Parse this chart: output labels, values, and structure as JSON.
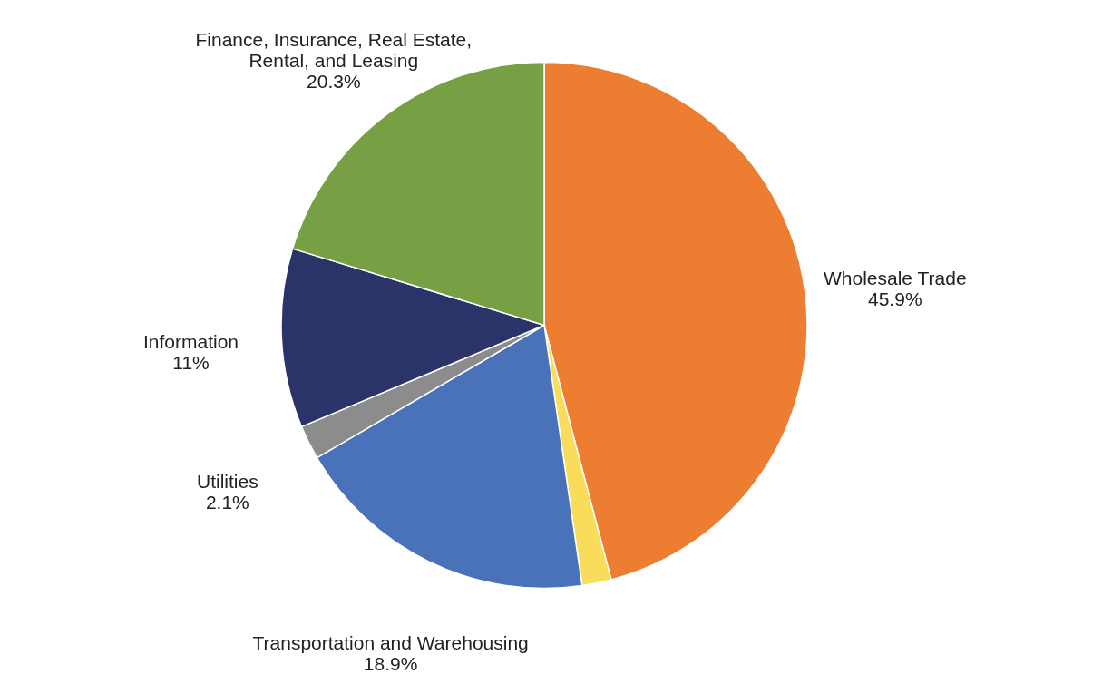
{
  "chart_data": {
    "type": "pie",
    "categories": [
      "Wholesale Trade",
      null,
      "Transportation and Warehousing",
      "Utilities",
      "Information",
      "Finance, Insurance, Real Estate, Rental, and Leasing"
    ],
    "values": [
      45.9,
      1.8,
      18.9,
      2.1,
      11,
      20.3
    ],
    "value_labels": [
      "45.9%",
      null,
      "18.9%",
      "2.1%",
      "11%",
      "20.3%"
    ],
    "colors": [
      "#ed7d31",
      "#f8dc5a",
      "#4a72b8",
      "#8c8c8c",
      "#2b3469",
      "#76a043"
    ],
    "legend": false
  }
}
